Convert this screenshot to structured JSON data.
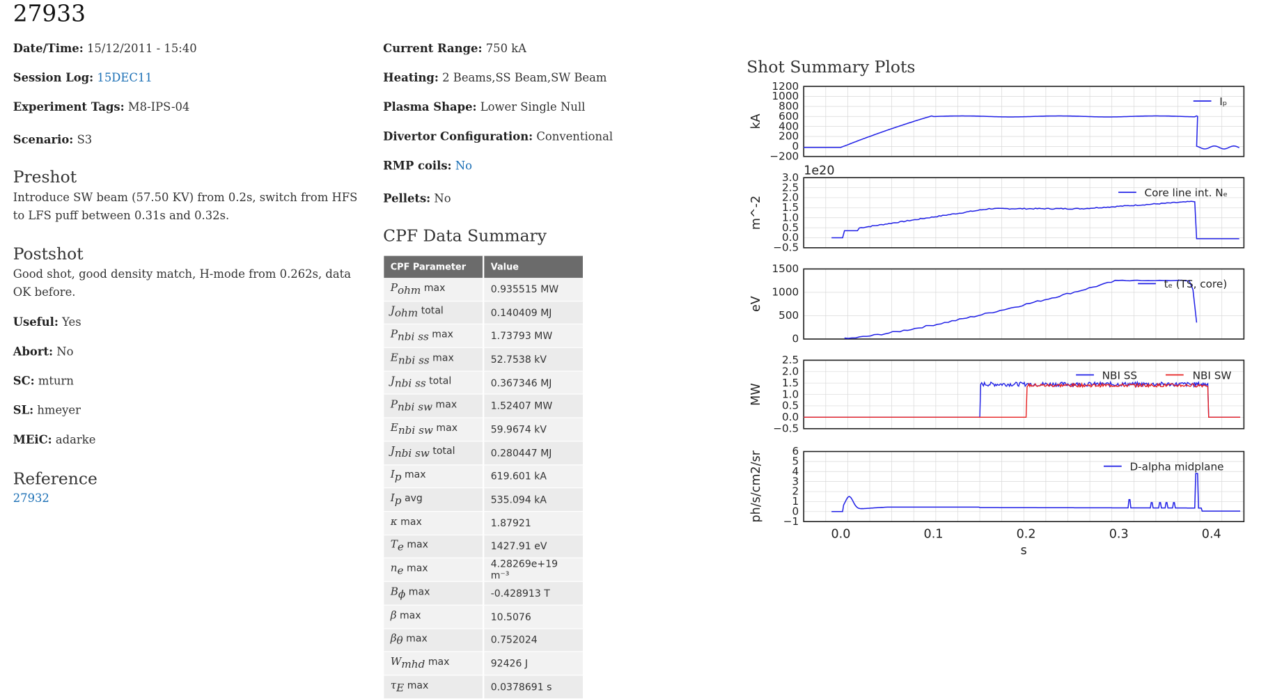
{
  "shot": {
    "number": "27933"
  },
  "left_fields": [
    {
      "label": "Date/Time:",
      "value": "15/12/2011 - 15:40",
      "link": false
    },
    {
      "label": "Session Log:",
      "value": "15DEC11",
      "link": true
    },
    {
      "label": "Experiment Tags:",
      "value": "M8-IPS-04",
      "link": false
    },
    {
      "label": "Scenario:",
      "value": "S3",
      "link": false
    }
  ],
  "preshot": {
    "heading": "Preshot",
    "text": "Introduce SW beam (57.50 KV) from 0.2s, switch from HFS to LFS puff between 0.31s and 0.32s."
  },
  "postshot": {
    "heading": "Postshot",
    "text": "Good shot, good density match, H-mode from 0.262s, data OK before."
  },
  "post_fields": [
    {
      "label": "Useful:",
      "value": "Yes"
    },
    {
      "label": "Abort:",
      "value": "No"
    },
    {
      "label": "SC:",
      "value": "mturn"
    },
    {
      "label": "SL:",
      "value": "hmeyer"
    },
    {
      "label": "MEiC:",
      "value": "adarke"
    }
  ],
  "reference": {
    "heading": "Reference",
    "link": "27932"
  },
  "right_fields": [
    {
      "label": "Current Range:",
      "value": "750 kA",
      "link": false
    },
    {
      "label": "Heating:",
      "value": "2 Beams,SS Beam,SW Beam",
      "link": false
    },
    {
      "label": "Plasma Shape:",
      "value": "Lower Single Null",
      "link": false
    },
    {
      "label": "Divertor Configuration:",
      "value": "Conventional",
      "link": false
    },
    {
      "label": "RMP coils:",
      "value": "No",
      "link": true
    },
    {
      "label": "Pellets:",
      "value": "No",
      "link": false
    }
  ],
  "cpf": {
    "heading": "CPF Data Summary",
    "col_param": "CPF Parameter",
    "col_value": "Value",
    "rows": [
      {
        "sym": "P",
        "sub": "ohm",
        "kind": "max",
        "value": "0.935515 MW"
      },
      {
        "sym": "J",
        "sub": "ohm",
        "kind": "total",
        "value": "0.140409 MJ"
      },
      {
        "sym": "P",
        "sub": "nbi ss",
        "kind": "max",
        "value": "1.73793 MW"
      },
      {
        "sym": "E",
        "sub": "nbi ss",
        "kind": "max",
        "value": "52.7538 kV"
      },
      {
        "sym": "J",
        "sub": "nbi ss",
        "kind": "total",
        "value": "0.367346 MJ"
      },
      {
        "sym": "P",
        "sub": "nbi sw",
        "kind": "max",
        "value": "1.52407 MW"
      },
      {
        "sym": "E",
        "sub": "nbi sw",
        "kind": "max",
        "value": "59.9674 kV"
      },
      {
        "sym": "J",
        "sub": "nbi sw",
        "kind": "total",
        "value": "0.280447 MJ"
      },
      {
        "sym": "I",
        "sub": "p",
        "kind": "max",
        "value": "619.601 kA"
      },
      {
        "sym": "I",
        "sub": "p",
        "kind": "avg",
        "value": "535.094 kA"
      },
      {
        "sym": "κ",
        "sub": "",
        "kind": "max",
        "value": "1.87921"
      },
      {
        "sym": "T",
        "sub": "e",
        "kind": "max",
        "value": "1427.91 eV"
      },
      {
        "sym": "n",
        "sub": "e",
        "kind": "max",
        "value": "4.28269e+19 m⁻³"
      },
      {
        "sym": "B",
        "sub": "ϕ",
        "kind": "max",
        "value": "-0.428913 T"
      },
      {
        "sym": "β",
        "sub": "",
        "kind": "max",
        "value": "10.5076"
      },
      {
        "sym": "β",
        "sub": "θ",
        "kind": "max",
        "value": "0.752024"
      },
      {
        "sym": "W",
        "sub": "mhd",
        "kind": "max",
        "value": "92426 J"
      },
      {
        "sym": "τ",
        "sub": "E",
        "kind": "max",
        "value": "0.0378691 s"
      }
    ]
  },
  "plots": {
    "heading": "Shot Summary Plots",
    "x_label": "s",
    "x_ticks": [
      "0.0",
      "0.1",
      "0.2",
      "0.3",
      "0.4"
    ],
    "panels": [
      {
        "ylabel": "kA",
        "yticks": [
          "1200",
          "1000",
          "800",
          "600",
          "400",
          "200",
          "0",
          "−200"
        ],
        "legend": [
          "Iₚ"
        ],
        "offset": ""
      },
      {
        "ylabel": "m^-2",
        "yticks": [
          "3.0",
          "2.5",
          "2.0",
          "1.5",
          "1.0",
          "0.5",
          "0.0",
          "−0.5"
        ],
        "legend": [
          "Core line int. Nₑ"
        ],
        "offset": "1e20"
      },
      {
        "ylabel": "eV",
        "yticks": [
          "1500",
          "1000",
          "500",
          "0"
        ],
        "legend": [
          "tₑ (TS, core)"
        ],
        "offset": ""
      },
      {
        "ylabel": "MW",
        "yticks": [
          "2.5",
          "2.0",
          "1.5",
          "1.0",
          "0.5",
          "0.0",
          "−0.5"
        ],
        "legend": [
          "NBI SS",
          "NBI SW"
        ],
        "offset": ""
      },
      {
        "ylabel": "ph/s/cm2/sr",
        "yticks": [
          "6",
          "5",
          "4",
          "3",
          "2",
          "1",
          "0",
          "−1"
        ],
        "legend": [
          "D-alpha midplane"
        ],
        "offset": ""
      }
    ],
    "colors": {
      "blue": "#1f1fe6",
      "red": "#e61f1f"
    }
  }
}
